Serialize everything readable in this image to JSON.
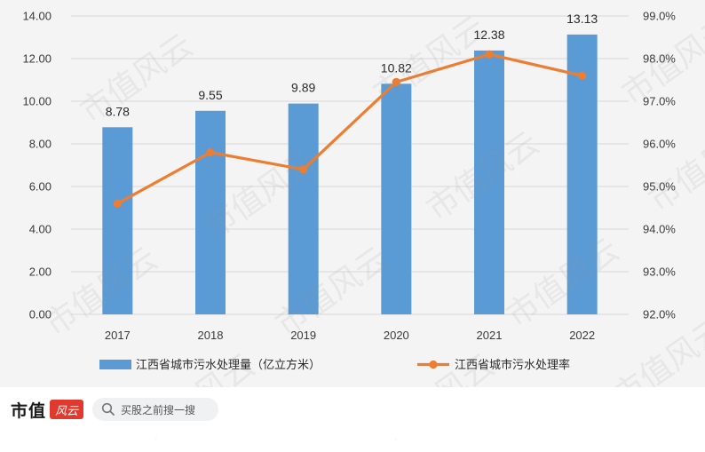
{
  "chart_data": {
    "type": "bar+line",
    "categories": [
      "2017",
      "2018",
      "2019",
      "2020",
      "2021",
      "2022"
    ],
    "series": [
      {
        "name": "江西省城市污水处理量（亿立方米）",
        "type": "bar",
        "axis": "left",
        "values": [
          8.78,
          9.55,
          9.89,
          10.82,
          12.38,
          13.13
        ],
        "value_labels": [
          "8.78",
          "9.55",
          "9.89",
          "10.82",
          "12.38",
          "13.13"
        ],
        "color": "#5b9bd5"
      },
      {
        "name": "江西省城市污水处理率",
        "type": "line",
        "axis": "right",
        "values": [
          94.6,
          95.8,
          95.4,
          97.45,
          98.1,
          97.6
        ],
        "color": "#ed7d31"
      }
    ],
    "y_left": {
      "ylim": [
        0,
        14
      ],
      "ticks": [
        "0.00",
        "2.00",
        "4.00",
        "6.00",
        "8.00",
        "10.00",
        "12.00",
        "14.00"
      ]
    },
    "y_right": {
      "ylim": [
        92,
        99
      ],
      "ticks": [
        "92.0%",
        "93.0%",
        "94.0%",
        "95.0%",
        "96.0%",
        "97.0%",
        "98.0%",
        "99.0%"
      ]
    },
    "grid": true,
    "legend": "bottom"
  },
  "footer": {
    "brand": "市值",
    "brand_seal": "风云",
    "search_placeholder": "买股之前搜一搜"
  },
  "watermark": "市值风云"
}
